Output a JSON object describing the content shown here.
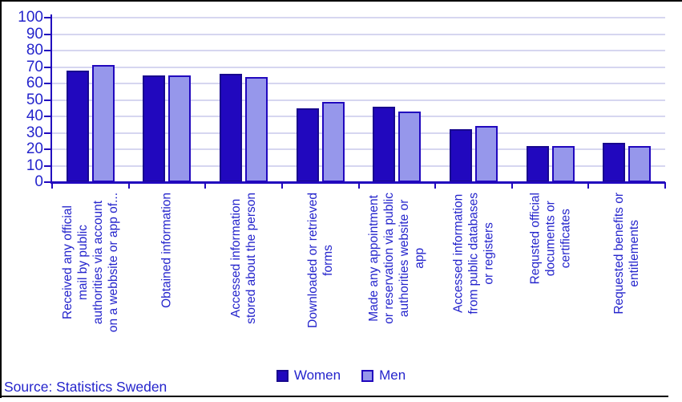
{
  "frame": {
    "source_note": "Source: Statistics Sweden"
  },
  "colors": {
    "text": "#2424CC",
    "axis": "#2108BE",
    "grid": "#D6D6F0",
    "frame_border": "#000000",
    "background": "#FFFFFF",
    "women_bar": "#2108BE",
    "men_bar": "#9697EB"
  },
  "chart_data": {
    "type": "bar",
    "title": "",
    "xlabel": "",
    "ylabel": "",
    "ylim": [
      0,
      100
    ],
    "yticks": [
      0,
      10,
      20,
      30,
      40,
      50,
      60,
      70,
      80,
      90,
      100
    ],
    "grid": true,
    "legend_position": "bottom",
    "categories": [
      "Received any official\nmail by public\nauthorities via account\non a webbsite or app of...",
      "Obtained information",
      "Accessed information\nstored about the person",
      "Downloaded or retrieved\nforms",
      "Made any appointment\nor reservation via public\nauthorities website or\napp",
      "Accessed information\nfrom public databases\nor registers",
      "Requsted official\ndocuments or\ncertificates",
      "Requested benefits or\nentitlements"
    ],
    "series": [
      {
        "name": "Women",
        "color": "#2108BE",
        "border": "#18088E",
        "values": [
          68,
          65,
          66,
          45,
          46,
          32,
          22,
          24
        ]
      },
      {
        "name": "Men",
        "color": "#9697EB",
        "border": "#2108BE",
        "values": [
          71,
          65,
          64,
          49,
          43,
          34,
          22,
          22
        ]
      }
    ]
  }
}
